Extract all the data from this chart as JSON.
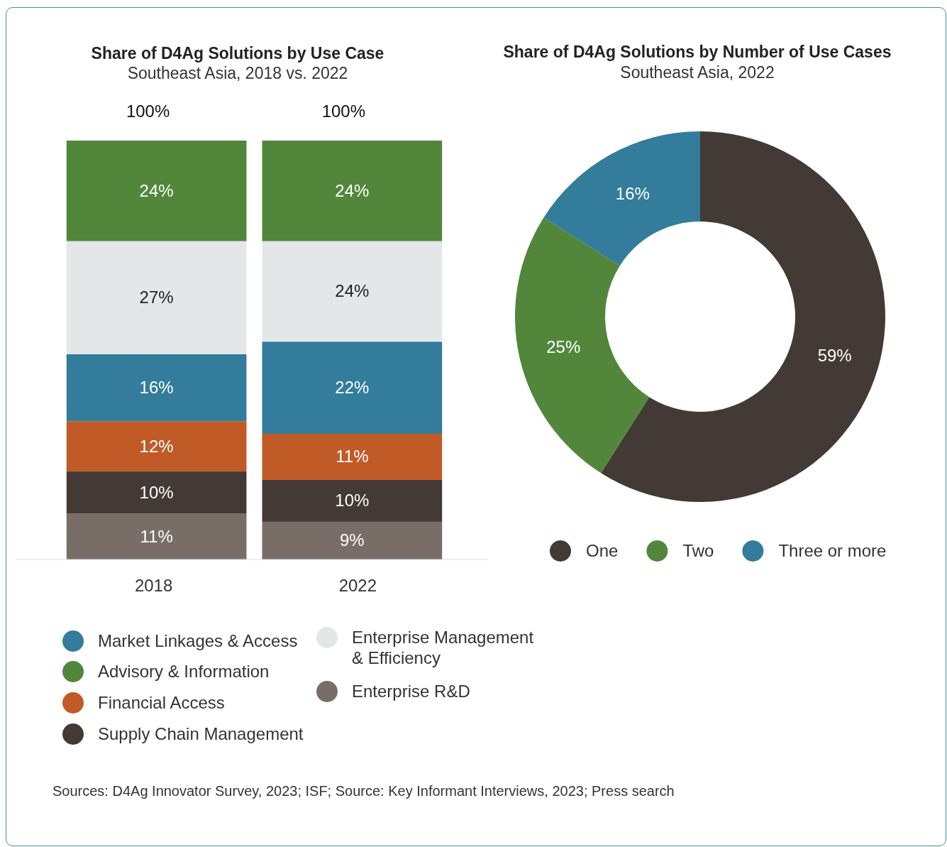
{
  "chart_data": [
    {
      "type": "bar",
      "title": "Share of D4Ag Solutions by Use Case",
      "subtitle": "Southeast Asia, 2018 vs. 2022",
      "categories": [
        "2018",
        "2022"
      ],
      "stacked": true,
      "legend": "bottom",
      "totals": [
        "100%",
        "100%"
      ],
      "series": [
        {
          "name": "Enterprise R&D",
          "color": "#786d67",
          "values": [
            11,
            9
          ],
          "value_labels": [
            "11%",
            "9%"
          ]
        },
        {
          "name": "Supply Chain Management",
          "color": "#433a35",
          "values": [
            10,
            10
          ],
          "value_labels": [
            "10%",
            "10%"
          ]
        },
        {
          "name": "Financial Access",
          "color": "#c05a27",
          "values": [
            12,
            11
          ],
          "value_labels": [
            "12%",
            "11%"
          ]
        },
        {
          "name": "Market Linkages & Access",
          "color": "#337c9b",
          "values": [
            16,
            22
          ],
          "value_labels": [
            "16%",
            "22%"
          ]
        },
        {
          "name": "Enterprise Management & Efficiency",
          "color": "#e5e6e8",
          "values": [
            27,
            24
          ],
          "value_labels": [
            "27%",
            "24%"
          ]
        },
        {
          "name": "Advisory & Information",
          "color": "#52873b",
          "values": [
            24,
            24
          ],
          "value_labels": [
            "24%",
            "24%"
          ]
        }
      ],
      "annotations": [
        "Sources: D4Ag Innovator Survey, 2023; ISF; Source: Key Informant Interviews, 2023; Press search"
      ]
    },
    {
      "type": "donut",
      "title": "Share of D4Ag Solutions by Number of Use Cases",
      "subtitle": "Southeast Asia, 2022",
      "categories": [
        "One",
        "Two",
        "Three or more"
      ],
      "values": [
        59,
        25,
        16
      ],
      "colors": [
        "#433a35",
        "#52873b",
        "#337c9b"
      ],
      "value_labels": [
        "59%",
        "25%",
        "16%"
      ],
      "legend": "bottom"
    }
  ]
}
